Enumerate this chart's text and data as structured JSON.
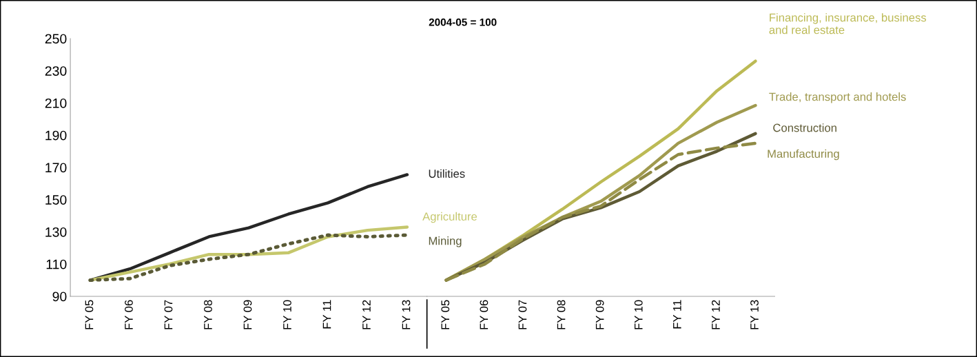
{
  "chart_data": [
    {
      "type": "line",
      "categories": [
        "FY 05",
        "FY 06",
        "FY 07",
        "FY 08",
        "FY 09",
        "FY 10",
        "FY 11",
        "FY 12",
        "FY 13"
      ],
      "ylim": [
        90,
        250
      ],
      "yticks": [
        90,
        110,
        130,
        150,
        170,
        190,
        210,
        230,
        250
      ],
      "grid": false,
      "legend": false,
      "marker": "none",
      "series": [
        {
          "name": "Utilities",
          "color": "#262626",
          "line_style": "solid",
          "values": [
            100,
            107,
            117,
            127,
            132.5,
            141,
            148,
            158,
            165.5
          ]
        },
        {
          "name": "Agriculture",
          "color": "#c5c76c",
          "line_style": "solid",
          "values": [
            100,
            105,
            110,
            116,
            116,
            117,
            127,
            131,
            133
          ]
        },
        {
          "name": "Mining",
          "color": "#5a5a36",
          "line_style": "dotted",
          "values": [
            100,
            101,
            109,
            113,
            116,
            122.5,
            128,
            127,
            128
          ]
        }
      ]
    },
    {
      "type": "line",
      "title": "2004-05 = 100",
      "categories": [
        "FY 05",
        "FY 06",
        "FY 07",
        "FY 08",
        "FY 09",
        "FY 10",
        "FY 11",
        "FY 12",
        "FY 13"
      ],
      "ylim": [
        90,
        250
      ],
      "tick_labels": "x",
      "grid": false,
      "legend": false,
      "marker": "none",
      "series": [
        {
          "name": "Financing, insurance, business\nand real estate",
          "color": "#bcba55",
          "line_style": "solid",
          "values": [
            100,
            113,
            128,
            144,
            161,
            177,
            194,
            217.5,
            236
          ]
        },
        {
          "name": "Trade, transport and hotels",
          "color": "#a09a4f",
          "line_style": "solid",
          "values": [
            100,
            113,
            127,
            139,
            149,
            165,
            185,
            198,
            208.5
          ]
        },
        {
          "name": "Construction",
          "color": "#5e5a35",
          "line_style": "solid",
          "values": [
            100,
            111,
            125,
            138,
            145,
            155,
            171,
            180,
            191
          ]
        },
        {
          "name": "Manufacturing",
          "color": "#8f8a45",
          "line_style": "dashed",
          "values": [
            100,
            110,
            126,
            139,
            146,
            162.5,
            178,
            182,
            185
          ]
        }
      ]
    }
  ]
}
